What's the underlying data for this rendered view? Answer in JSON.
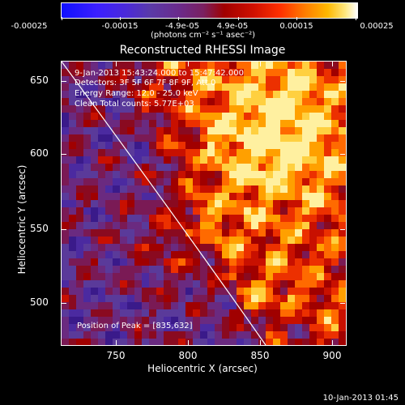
{
  "colorbar": {
    "ticks": [
      "-0.00025",
      "-0.00015",
      "-4.9e-05",
      "4.9e-05",
      "0.00015",
      "0.00025"
    ],
    "units": "(photons cm⁻² s⁻¹ asec⁻²)"
  },
  "title": "Reconstructed RHESSI Image",
  "annotations": {
    "time_range": "9-Jan-2013 15:43:24.000 to 15:47:42.000",
    "detectors": "Detectors: 3F 5F 6F 7F 8F 9F, Att 0",
    "energy": "Energy Range: 12.0 - 25.0 keV",
    "clean": "Clean    Total counts: 5.77E+03",
    "peak": "Position of Peak = [835,632]"
  },
  "axes": {
    "xlabel": "Heliocentric X (arcsec)",
    "ylabel": "Heliocentric Y (arcsec)",
    "xticks": [
      "750",
      "800",
      "850",
      "900"
    ],
    "yticks": [
      "650",
      "600",
      "550",
      "500"
    ],
    "xlim": [
      713,
      927
    ],
    "ylim": [
      471,
      666
    ]
  },
  "timestamp": "10-Jan-2013 01:45",
  "colors": {
    "limb_line": "#ffffff"
  }
}
